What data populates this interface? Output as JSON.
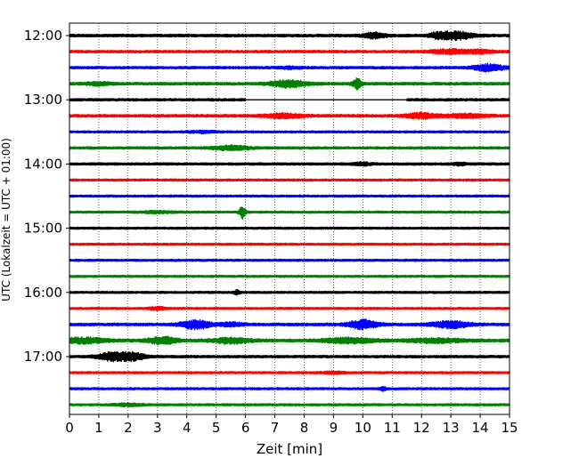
{
  "chart_data": {
    "type": "line",
    "title": "",
    "xlabel": "Zeit  [min]",
    "ylabel": "UTC (Lokalzeit = UTC + 01:00)",
    "xlim": [
      0,
      15
    ],
    "x_ticks": [
      0,
      1,
      2,
      3,
      4,
      5,
      6,
      7,
      8,
      9,
      10,
      11,
      12,
      13,
      14,
      15
    ],
    "y_tick_labels": [
      "12:00",
      "13:00",
      "14:00",
      "15:00",
      "16:00",
      "17:00"
    ],
    "y_tick_rows": [
      0,
      4,
      8,
      12,
      16,
      20
    ],
    "grid": "vertical-dotted",
    "color_cycle": [
      "#000000",
      "#ff0000",
      "#0000ff",
      "#008000"
    ],
    "traces": [
      {
        "time": "12:00",
        "amplitude": 1.0,
        "bursts": [
          [
            10.4,
            0.35,
            1.6
          ],
          [
            13.1,
            0.6,
            2.0
          ],
          [
            12.5,
            0.2,
            1.4
          ]
        ]
      },
      {
        "time": "12:15",
        "amplitude": 0.9,
        "bursts": [
          [
            12.9,
            0.6,
            1.5
          ],
          [
            14.0,
            0.5,
            1.4
          ]
        ]
      },
      {
        "time": "12:30",
        "amplitude": 0.9,
        "bursts": [
          [
            14.3,
            0.5,
            1.8
          ],
          [
            7.5,
            0.4,
            1.2
          ]
        ]
      },
      {
        "time": "12:45",
        "amplitude": 1.0,
        "bursts": [
          [
            7.5,
            0.6,
            1.8
          ],
          [
            9.8,
            0.15,
            2.2
          ],
          [
            1.0,
            0.4,
            1.3
          ]
        ]
      },
      {
        "time": "13:00",
        "amplitude": 0.9,
        "gap": [
          6.0,
          11.5
        ],
        "bursts": []
      },
      {
        "time": "13:15",
        "amplitude": 1.0,
        "bursts": [
          [
            7.3,
            0.6,
            1.5
          ],
          [
            12.0,
            0.5,
            1.6
          ],
          [
            13.5,
            0.7,
            1.4
          ]
        ]
      },
      {
        "time": "13:30",
        "amplitude": 0.8,
        "bursts": [
          [
            4.5,
            0.5,
            1.2
          ]
        ]
      },
      {
        "time": "13:45",
        "amplitude": 0.9,
        "bursts": [
          [
            5.5,
            0.6,
            1.5
          ]
        ]
      },
      {
        "time": "14:00",
        "amplitude": 0.9,
        "bursts": [
          [
            10.0,
            0.3,
            1.3
          ],
          [
            13.3,
            0.2,
            1.3
          ]
        ]
      },
      {
        "time": "14:15",
        "amplitude": 0.8,
        "bursts": []
      },
      {
        "time": "14:30",
        "amplitude": 0.8,
        "bursts": []
      },
      {
        "time": "14:45",
        "amplitude": 0.8,
        "bursts": [
          [
            5.9,
            0.1,
            2.5
          ],
          [
            3.0,
            0.6,
            1.2
          ]
        ]
      },
      {
        "time": "15:00",
        "amplitude": 0.8,
        "bursts": []
      },
      {
        "time": "15:15",
        "amplitude": 0.8,
        "bursts": []
      },
      {
        "time": "15:30",
        "amplitude": 0.8,
        "bursts": []
      },
      {
        "time": "15:45",
        "amplitude": 0.8,
        "bursts": []
      },
      {
        "time": "16:00",
        "amplitude": 0.8,
        "bursts": [
          [
            5.7,
            0.1,
            1.5
          ]
        ]
      },
      {
        "time": "16:15",
        "amplitude": 0.8,
        "bursts": [
          [
            3.0,
            0.3,
            1.3
          ]
        ]
      },
      {
        "time": "16:30",
        "amplitude": 1.0,
        "bursts": [
          [
            4.3,
            0.5,
            2.0
          ],
          [
            10.0,
            0.5,
            2.0
          ],
          [
            13.0,
            0.6,
            1.8
          ],
          [
            5.5,
            0.4,
            1.4
          ]
        ]
      },
      {
        "time": "16:45",
        "amplitude": 1.1,
        "bursts": [
          [
            0.5,
            0.7,
            1.6
          ],
          [
            3.2,
            0.5,
            1.8
          ],
          [
            5.5,
            0.6,
            1.6
          ],
          [
            9.5,
            0.8,
            1.6
          ],
          [
            12.5,
            1.0,
            1.4
          ]
        ]
      },
      {
        "time": "17:00",
        "amplitude": 0.9,
        "bursts": [
          [
            1.5,
            0.5,
            2.0
          ],
          [
            2.2,
            0.4,
            1.8
          ]
        ]
      },
      {
        "time": "17:15",
        "amplitude": 0.8,
        "bursts": [
          [
            9.0,
            0.4,
            1.2
          ]
        ]
      },
      {
        "time": "17:30",
        "amplitude": 0.8,
        "bursts": [
          [
            10.7,
            0.1,
            1.4
          ]
        ]
      },
      {
        "time": "17:45",
        "amplitude": 0.8,
        "bursts": [
          [
            2.0,
            0.5,
            1.3
          ]
        ]
      }
    ]
  }
}
